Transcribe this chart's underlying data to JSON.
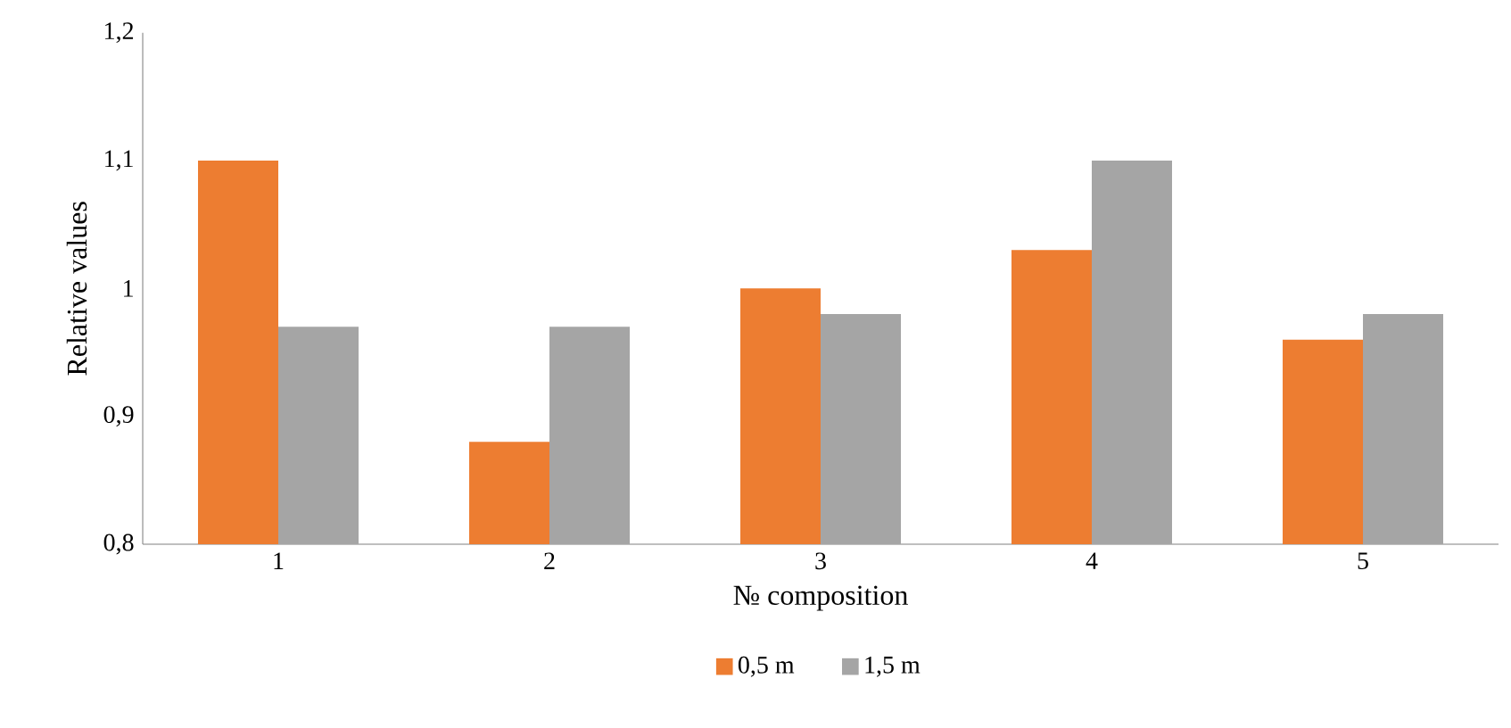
{
  "chart_data": {
    "type": "bar",
    "xlabel": "№ composition",
    "ylabel": "Relative values",
    "categories": [
      "1",
      "2",
      "3",
      "4",
      "5"
    ],
    "series": [
      {
        "name": "0,5 m",
        "color": "#ed7d31",
        "values": [
          1.1,
          0.88,
          1.0,
          1.03,
          0.96
        ]
      },
      {
        "name": "1,5 m",
        "color": "#a5a5a5",
        "values": [
          0.97,
          0.97,
          0.98,
          1.1,
          0.98
        ]
      }
    ],
    "ylim": [
      0.8,
      1.2
    ],
    "yticks": [
      {
        "value": 0.8,
        "label": "0,8"
      },
      {
        "value": 0.9,
        "label": "0,9"
      },
      {
        "value": 1.0,
        "label": "1"
      },
      {
        "value": 1.1,
        "label": "1,1"
      },
      {
        "value": 1.2,
        "label": "1,2"
      }
    ],
    "legend": "bottom",
    "grid": false
  }
}
